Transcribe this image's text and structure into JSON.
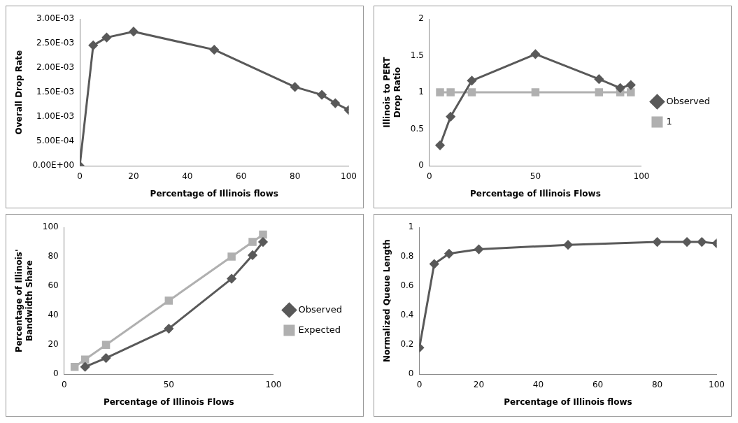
{
  "chart_data": [
    {
      "type": "line",
      "xlabel": "Percentage of Illinois flows",
      "ylabel": "Overall Drop Rate",
      "x": [
        0,
        5,
        10,
        20,
        50,
        80,
        90,
        95,
        100
      ],
      "series": [
        {
          "color": "#595959",
          "marker": "diamond",
          "values": [
            0,
            0.00246,
            0.00262,
            0.00274,
            0.00237,
            0.00161,
            0.00145,
            0.00128,
            0.00114
          ]
        }
      ],
      "xlim": [
        0,
        100
      ],
      "xticks": [
        0,
        20,
        40,
        60,
        80,
        100
      ],
      "ylim": [
        0,
        0.003
      ],
      "yticks": [
        {
          "value": 0,
          "label": "0.00E+00"
        },
        {
          "value": 0.0005,
          "label": "5.00E-04"
        },
        {
          "value": 0.001,
          "label": "1.00E-03"
        },
        {
          "value": 0.0015,
          "label": "1.50E-03"
        },
        {
          "value": 0.002,
          "label": "2.00E-03"
        },
        {
          "value": 0.0025,
          "label": "2.50E-03"
        },
        {
          "value": 0.003,
          "label": "3.00E-03"
        }
      ],
      "grid": false,
      "legend": false
    },
    {
      "type": "line",
      "xlabel": "Percentage of Illinois Flows",
      "ylabel": "Illinois to PERT\nDrop Ratio",
      "x": [
        5,
        10,
        20,
        50,
        80,
        90,
        95
      ],
      "series": [
        {
          "name": "Observed",
          "color": "#595959",
          "marker": "diamond",
          "values": [
            0.28,
            0.67,
            1.16,
            1.52,
            1.18,
            1.06,
            1.1
          ]
        },
        {
          "name": "1",
          "color": "#b0b0b0",
          "marker": "square",
          "values": [
            1,
            1,
            1,
            1,
            1,
            1,
            1
          ]
        }
      ],
      "xlim": [
        0,
        100
      ],
      "xticks": [
        0,
        50,
        100
      ],
      "ylim": [
        0,
        2
      ],
      "yticks": [
        0,
        0.5,
        1,
        1.5,
        2
      ],
      "grid": false,
      "legend": "right"
    },
    {
      "type": "line",
      "xlabel": "Percentage of Illinois Flows",
      "ylabel": "Percentage of Illinois'\nBandwidth Share",
      "series": [
        {
          "name": "Observed",
          "color": "#595959",
          "marker": "diamond",
          "x": [
            10,
            20,
            50,
            80,
            90,
            95
          ],
          "values": [
            5,
            11,
            31,
            65,
            81,
            90
          ]
        },
        {
          "name": "Expected",
          "color": "#b0b0b0",
          "marker": "square",
          "x": [
            5,
            10,
            20,
            50,
            80,
            90,
            95
          ],
          "values": [
            5,
            10,
            20,
            50,
            80,
            90,
            95
          ]
        }
      ],
      "xlim": [
        0,
        100
      ],
      "xticks": [
        0,
        50,
        100
      ],
      "ylim": [
        0,
        100
      ],
      "yticks": [
        0,
        20,
        40,
        60,
        80,
        100
      ],
      "grid": false,
      "legend": "right"
    },
    {
      "type": "line",
      "xlabel": "Percentage of Illinois flows",
      "ylabel": "Normalized Queue Length",
      "x": [
        0,
        5,
        10,
        20,
        50,
        80,
        90,
        95,
        100
      ],
      "series": [
        {
          "color": "#595959",
          "marker": "diamond",
          "values": [
            0.18,
            0.75,
            0.82,
            0.85,
            0.88,
            0.9,
            0.9,
            0.9,
            0.89
          ]
        }
      ],
      "xlim": [
        0,
        100
      ],
      "xticks": [
        0,
        20,
        40,
        60,
        80,
        100
      ],
      "ylim": [
        0,
        1
      ],
      "yticks": [
        0,
        0.2,
        0.4,
        0.6,
        0.8,
        1
      ],
      "grid": false,
      "legend": false
    }
  ]
}
